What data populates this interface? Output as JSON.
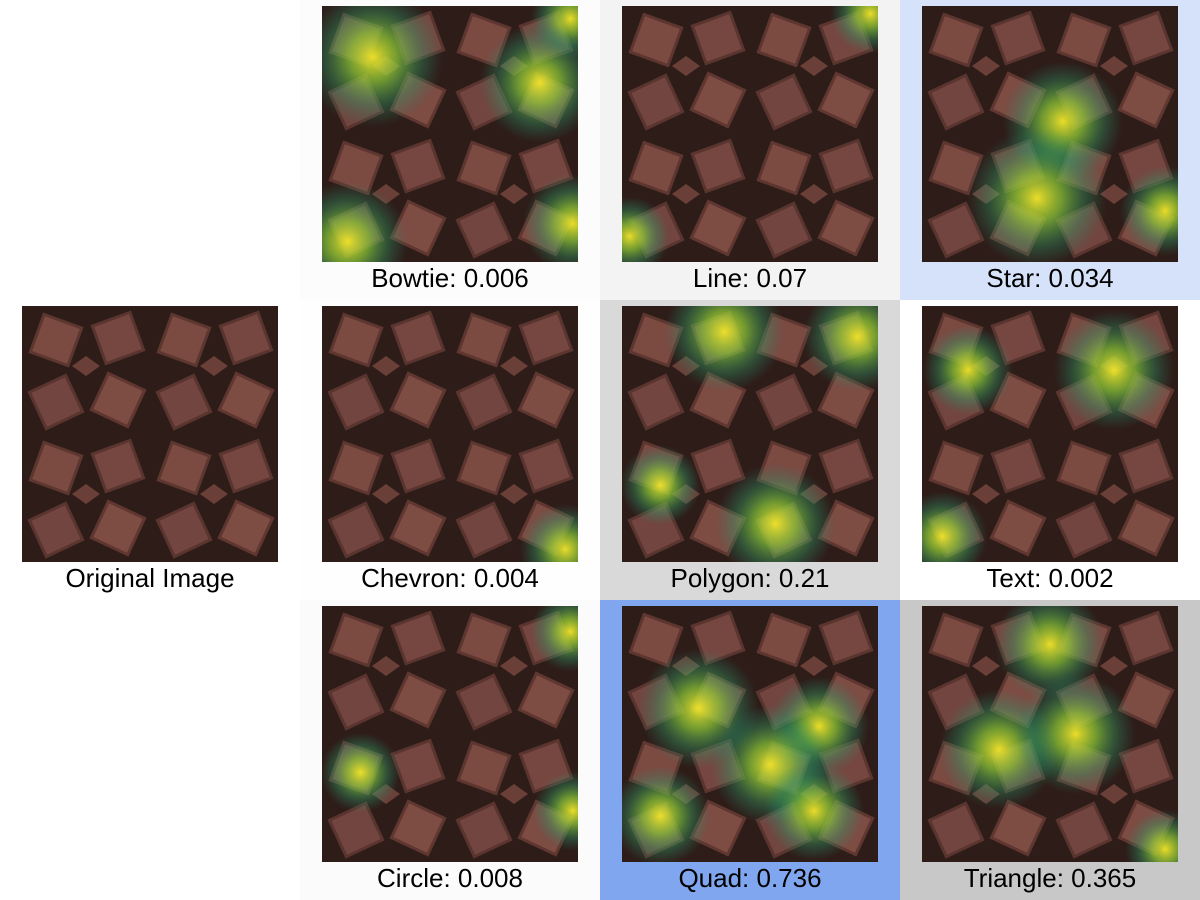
{
  "cells": [
    {
      "label": "Bowtie: 0.006",
      "background": "#fcfcfc"
    },
    {
      "label": "Line: 0.07",
      "background": "#f3f3f3"
    },
    {
      "label": "Star: 0.034",
      "background": "#d6e2fa"
    },
    {
      "label": "Original Image",
      "background": "#ffffff"
    },
    {
      "label": "Chevron: 0.004",
      "background": "#fefefe"
    },
    {
      "label": "Polygon: 0.21",
      "background": "#d9d9d9"
    },
    {
      "label": "Text: 0.002",
      "background": "#ffffff"
    },
    {
      "label": "Circle: 0.008",
      "background": "#fbfbfb"
    },
    {
      "label": "Quad: 0.736",
      "background": "#7fa6ee"
    },
    {
      "label": "Triangle: 0.365",
      "background": "#c8c8c8"
    }
  ]
}
